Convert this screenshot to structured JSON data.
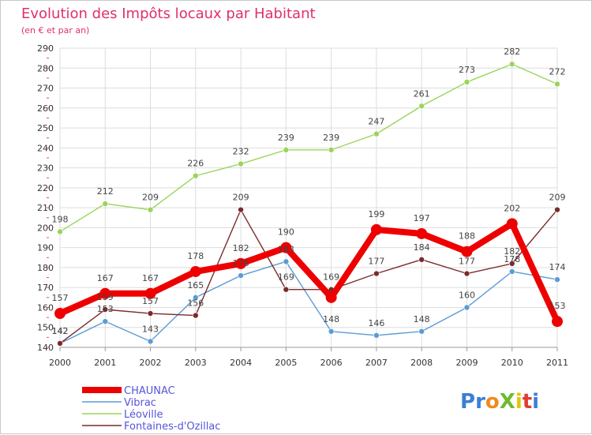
{
  "chart_data": {
    "type": "line",
    "title": "Evolution des Impôts locaux par Habitant",
    "subtitle": "(en € et par an)",
    "xlabel": "",
    "ylabel": "",
    "x": [
      "2000",
      "2001",
      "2002",
      "2003",
      "2004",
      "2005",
      "2006",
      "2007",
      "2008",
      "2009",
      "2010",
      "2011"
    ],
    "ylim": [
      140,
      290
    ],
    "yticks": [
      "140",
      "150",
      "160",
      "170",
      "180",
      "190",
      "200",
      "210",
      "220",
      "230",
      "240",
      "250",
      "260",
      "270",
      "280",
      "290"
    ],
    "grid": true,
    "legend_position": "bottom-left",
    "series": [
      {
        "name": "CHAUNAC",
        "color": "#ee0000",
        "values": [
          157,
          167,
          167,
          178,
          182,
          190,
          165,
          199,
          197,
          188,
          202,
          153
        ],
        "labels": [
          "157",
          "167",
          "167",
          "178",
          "182",
          "190",
          "",
          "199",
          "197",
          "188",
          "202",
          "153"
        ]
      },
      {
        "name": "Vibrac",
        "color": "#5b9bd5",
        "values": [
          142,
          153,
          143,
          165,
          176,
          183,
          148,
          146,
          148,
          160,
          178,
          174
        ],
        "labels": [
          "142",
          "153",
          "143",
          "165",
          "176",
          "183",
          "148",
          "146",
          "148",
          "160",
          "178",
          "174"
        ]
      },
      {
        "name": "Léoville",
        "color": "#9ad45a",
        "values": [
          198,
          212,
          209,
          226,
          232,
          239,
          239,
          247,
          261,
          273,
          282,
          272
        ],
        "labels": [
          "198",
          "212",
          "209",
          "226",
          "232",
          "239",
          "239",
          "247",
          "261",
          "273",
          "282",
          "272"
        ]
      },
      {
        "name": "Fontaines-d'Ozillac",
        "color": "#7a2b2b",
        "values": [
          142,
          159,
          157,
          156,
          209,
          169,
          169,
          177,
          184,
          177,
          182,
          209
        ],
        "labels": [
          "142",
          "159",
          "157",
          "156",
          "209",
          "169",
          "169",
          "177",
          "184",
          "177",
          "182",
          "209"
        ]
      }
    ]
  },
  "logo": {
    "text": "ProXiti",
    "letter_colors": [
      "#3a7fd5",
      "#3a7fd5",
      "#f08a1c",
      "#6dbb2e",
      "#e8c400",
      "#e03d2f",
      "#3a7fd5"
    ]
  }
}
